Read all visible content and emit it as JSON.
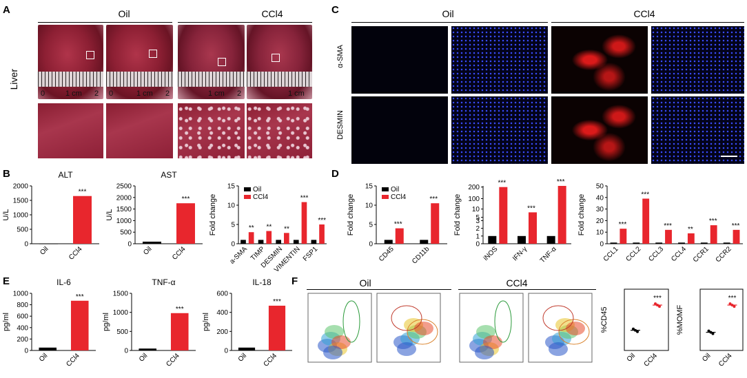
{
  "panels": {
    "A": {
      "letter": "A",
      "groups": [
        "Oil",
        "CCl4"
      ],
      "row_label": "Liver",
      "scale_labels": [
        "0",
        "1 cm",
        "2"
      ]
    },
    "B": {
      "letter": "B"
    },
    "C": {
      "letter": "C",
      "groups": [
        "Oil",
        "CCl4"
      ],
      "rows": [
        "α-SMA",
        "DESMIN"
      ]
    },
    "D": {
      "letter": "D"
    },
    "E": {
      "letter": "E"
    },
    "F": {
      "letter": "F",
      "groups": [
        "Oil",
        "CCl4"
      ]
    }
  },
  "colors": {
    "oil": "#000000",
    "ccl4": "#e8262d"
  },
  "chart_data": [
    {
      "id": "B_ALT",
      "type": "bar",
      "title": "ALT",
      "ylabel": "U/L",
      "categories": [
        "Oil",
        "CCl4"
      ],
      "values": [
        10,
        1650
      ],
      "ylim": [
        0,
        2000
      ],
      "yticks": [
        0,
        500,
        1000,
        1500,
        2000
      ],
      "sig": [
        "",
        "***"
      ]
    },
    {
      "id": "B_AST",
      "type": "bar",
      "title": "AST",
      "ylabel": "U/L",
      "categories": [
        "Oil",
        "CCl4"
      ],
      "values": [
        90,
        1750
      ],
      "ylim": [
        0,
        2500
      ],
      "yticks": [
        0,
        500,
        1000,
        1500,
        2000,
        2500
      ],
      "sig": [
        "",
        "***"
      ]
    },
    {
      "id": "B_fold",
      "type": "bar",
      "ylabel": "Fold change",
      "categories": [
        "a-SMA",
        "TIMP",
        "DESMIN",
        "VIMENTIN",
        "FSP1"
      ],
      "ylim": [
        0,
        15
      ],
      "yticks": [
        0,
        5,
        10,
        15
      ],
      "legend": [
        "Oil",
        "CCl4"
      ],
      "series": [
        {
          "name": "Oil",
          "values": [
            1,
            1,
            1,
            1,
            1
          ]
        },
        {
          "name": "CCl4",
          "values": [
            3,
            3.3,
            2.8,
            10.8,
            5
          ]
        }
      ],
      "sig": [
        "**",
        "**",
        "**",
        "***",
        "***"
      ]
    },
    {
      "id": "D_1",
      "type": "bar",
      "ylabel": "Fold change",
      "categories": [
        "CD45",
        "CD11b"
      ],
      "ylim": [
        0,
        15
      ],
      "yticks": [
        0,
        5,
        10,
        15
      ],
      "legend": [
        "Oil",
        "CCl4"
      ],
      "series": [
        {
          "name": "Oil",
          "values": [
            1,
            1
          ]
        },
        {
          "name": "CCl4",
          "values": [
            4,
            10.5
          ]
        }
      ],
      "sig": [
        "***",
        "***"
      ]
    },
    {
      "id": "D_2",
      "type": "bar",
      "ylabel": "Fold change",
      "categories": [
        "iNOS",
        "IFN-γ",
        "TNF-α"
      ],
      "yticks_labels": [
        "0",
        "1",
        "2",
        "3",
        "5",
        "10",
        "100",
        "200"
      ],
      "series": [
        {
          "name": "Oil",
          "values": [
            1,
            1,
            1
          ]
        },
        {
          "name": "CCl4",
          "values": [
            200,
            8,
            210
          ]
        }
      ],
      "sig": [
        "***",
        "***",
        "***"
      ]
    },
    {
      "id": "D_3",
      "type": "bar",
      "ylabel": "Fold change",
      "categories": [
        "CCL1",
        "CCL2",
        "CCL3",
        "CCL4",
        "CCR1",
        "CCR2"
      ],
      "ylim": [
        0,
        50
      ],
      "yticks": [
        0,
        10,
        20,
        30,
        40,
        50
      ],
      "series": [
        {
          "name": "Oil",
          "values": [
            1,
            1,
            1,
            1,
            1,
            1
          ]
        },
        {
          "name": "CCl4",
          "values": [
            13,
            39,
            12,
            9,
            16,
            12
          ]
        }
      ],
      "sig": [
        "***",
        "***",
        "***",
        "**",
        "***",
        "***"
      ]
    },
    {
      "id": "E_IL6",
      "type": "bar",
      "title": "IL-6",
      "ylabel": "pg/ml",
      "categories": [
        "Oil",
        "CCl4"
      ],
      "values": [
        50,
        870
      ],
      "ylim": [
        0,
        1000
      ],
      "yticks": [
        0,
        200,
        400,
        600,
        800,
        1000
      ],
      "sig": [
        "",
        "***"
      ]
    },
    {
      "id": "E_TNF",
      "type": "bar",
      "title": "TNF-α",
      "ylabel": "pg/ml",
      "categories": [
        "Oil",
        "CCl4"
      ],
      "values": [
        50,
        980
      ],
      "ylim": [
        0,
        1500
      ],
      "yticks": [
        0,
        500,
        1000,
        1500
      ],
      "sig": [
        "",
        "***"
      ]
    },
    {
      "id": "E_IL18",
      "type": "bar",
      "title": "IL-18",
      "ylabel": "pg/ml",
      "categories": [
        "Oil",
        "CCl4"
      ],
      "values": [
        30,
        470
      ],
      "ylim": [
        0,
        600
      ],
      "yticks": [
        0,
        200,
        400,
        600
      ],
      "sig": [
        "",
        "***"
      ]
    },
    {
      "id": "F_CD45",
      "type": "scatter",
      "ylabel": "%CD45",
      "categories": [
        "Oil",
        "CCl4"
      ],
      "values": [
        10,
        22.5
      ],
      "sig": [
        "",
        "***"
      ]
    },
    {
      "id": "F_MOMF",
      "type": "scatter",
      "ylabel": "%MOMF",
      "categories": [
        "Oil",
        "CCl4"
      ],
      "values": [
        14,
        35
      ],
      "sig": [
        "",
        "***"
      ]
    }
  ]
}
